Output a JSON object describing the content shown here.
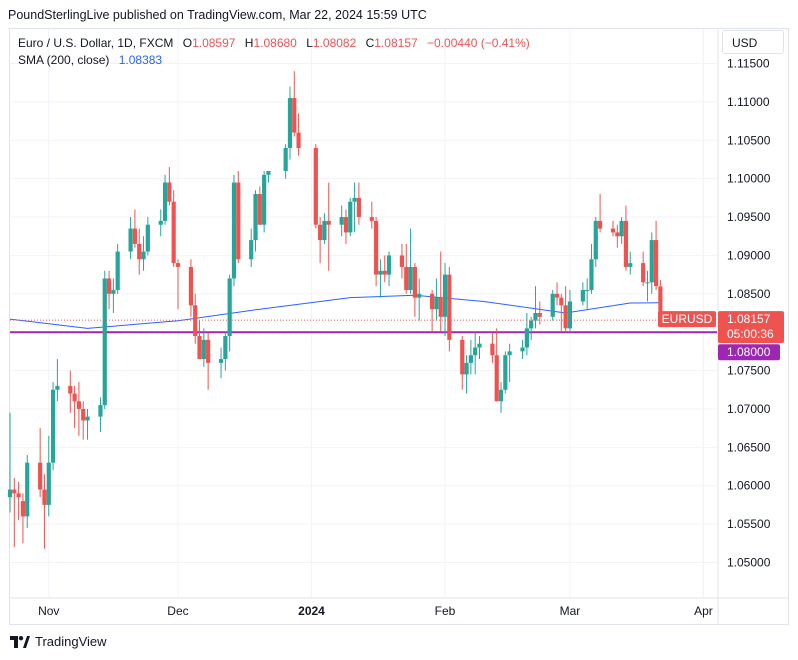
{
  "header": {
    "text": "PoundSterlingLive published on TradingView.com, Mar 22, 2024 15:59 UTC"
  },
  "legend": {
    "symbol": "Euro / U.S. Dollar, 1D, FXCM",
    "open_label": "O",
    "open": "1.08597",
    "high_label": "H",
    "high": "1.08680",
    "low_label": "L",
    "low": "1.08082",
    "close_label": "C",
    "close": "1.08157",
    "change": "−0.00440 (−0.41%)",
    "sma_label": "SMA (200, close)",
    "sma_value": "1.08383"
  },
  "currency_button": "USD",
  "footer": {
    "brand": "TradingView"
  },
  "colors": {
    "up": "#26a69a",
    "down": "#ef5350",
    "sma": "#2962ff",
    "hline": "#9c27b0",
    "grid": "#f0f3fa",
    "axis_text": "#131722"
  },
  "chart_data": {
    "type": "candlestick",
    "symbol": "EURUSD",
    "timeframe": "1D",
    "y_ticks": [
      "1.11500",
      "1.11000",
      "1.10500",
      "1.10000",
      "1.09500",
      "1.09000",
      "1.08500",
      "1.08000",
      "1.07500",
      "1.07000",
      "1.06500",
      "1.06000",
      "1.05500",
      "1.05000"
    ],
    "y_range": [
      1.0455,
      1.1195
    ],
    "x_range": [
      "2023-10-23",
      "2024-04-06"
    ],
    "x_ticks": [
      {
        "date": "2023-11-01",
        "label": "Nov",
        "bold": false
      },
      {
        "date": "2023-12-01",
        "label": "Dec",
        "bold": false
      },
      {
        "date": "2024-01-01",
        "label": "2024",
        "bold": true
      },
      {
        "date": "2024-02-01",
        "label": "Feb",
        "bold": false
      },
      {
        "date": "2024-03-01",
        "label": "Mar",
        "bold": false
      },
      {
        "date": "2024-04-01",
        "label": "Apr",
        "bold": false
      }
    ],
    "price_tag": {
      "symbol": "EURUSD",
      "value": "1.08157",
      "countdown": "05:00:36"
    },
    "horizontal_line": {
      "value": 1.08,
      "label": "1.08000"
    },
    "candles": [
      {
        "date": "2023-10-23",
        "o": 1.0585,
        "h": 1.0695,
        "l": 1.0565,
        "c": 1.0595
      },
      {
        "date": "2023-10-24",
        "o": 1.0595,
        "h": 1.061,
        "l": 1.052,
        "c": 1.059
      },
      {
        "date": "2023-10-25",
        "o": 1.059,
        "h": 1.0605,
        "l": 1.0555,
        "c": 1.0585
      },
      {
        "date": "2023-10-26",
        "o": 1.058,
        "h": 1.059,
        "l": 1.0525,
        "c": 1.056
      },
      {
        "date": "2023-10-27",
        "o": 1.056,
        "h": 1.064,
        "l": 1.0545,
        "c": 1.063
      },
      {
        "date": "2023-10-30",
        "o": 1.063,
        "h": 1.0675,
        "l": 1.0585,
        "c": 1.0595
      },
      {
        "date": "2023-10-31",
        "o": 1.0595,
        "h": 1.0615,
        "l": 1.0518,
        "c": 1.0575
      },
      {
        "date": "2023-11-01",
        "o": 1.0575,
        "h": 1.0665,
        "l": 1.056,
        "c": 1.063
      },
      {
        "date": "2023-11-02",
        "o": 1.063,
        "h": 1.0735,
        "l": 1.062,
        "c": 1.0725
      },
      {
        "date": "2023-11-03",
        "o": 1.0725,
        "h": 1.0765,
        "l": 1.071,
        "c": 1.073
      },
      {
        "date": "2023-11-06",
        "o": 1.073,
        "h": 1.075,
        "l": 1.0695,
        "c": 1.072
      },
      {
        "date": "2023-11-07",
        "o": 1.072,
        "h": 1.073,
        "l": 1.0675,
        "c": 1.071
      },
      {
        "date": "2023-11-08",
        "o": 1.071,
        "h": 1.0735,
        "l": 1.0665,
        "c": 1.07
      },
      {
        "date": "2023-11-09",
        "o": 1.07,
        "h": 1.071,
        "l": 1.066,
        "c": 1.0685
      },
      {
        "date": "2023-11-10",
        "o": 1.0685,
        "h": 1.07,
        "l": 1.066,
        "c": 1.069
      },
      {
        "date": "2023-11-13",
        "o": 1.069,
        "h": 1.0715,
        "l": 1.067,
        "c": 1.0705
      },
      {
        "date": "2023-11-14",
        "o": 1.0705,
        "h": 1.088,
        "l": 1.07,
        "c": 1.087
      },
      {
        "date": "2023-11-15",
        "o": 1.087,
        "h": 1.088,
        "l": 1.083,
        "c": 1.085
      },
      {
        "date": "2023-11-16",
        "o": 1.085,
        "h": 1.087,
        "l": 1.0825,
        "c": 1.0855
      },
      {
        "date": "2023-11-17",
        "o": 1.0855,
        "h": 1.0915,
        "l": 1.085,
        "c": 1.0905
      },
      {
        "date": "2023-11-20",
        "o": 1.0905,
        "h": 1.095,
        "l": 1.0895,
        "c": 1.0935
      },
      {
        "date": "2023-11-21",
        "o": 1.0935,
        "h": 1.096,
        "l": 1.091,
        "c": 1.0915
      },
      {
        "date": "2023-11-22",
        "o": 1.0915,
        "h": 1.0935,
        "l": 1.0875,
        "c": 1.0895
      },
      {
        "date": "2023-11-23",
        "o": 1.0895,
        "h": 1.0925,
        "l": 1.088,
        "c": 1.0905
      },
      {
        "date": "2023-11-24",
        "o": 1.0905,
        "h": 1.095,
        "l": 1.09,
        "c": 1.094
      },
      {
        "date": "2023-11-27",
        "o": 1.094,
        "h": 1.096,
        "l": 1.0925,
        "c": 1.0945
      },
      {
        "date": "2023-11-28",
        "o": 1.0945,
        "h": 1.1005,
        "l": 1.094,
        "c": 1.0995
      },
      {
        "date": "2023-11-29",
        "o": 1.0995,
        "h": 1.1015,
        "l": 1.0965,
        "c": 1.097
      },
      {
        "date": "2023-11-30",
        "o": 1.097,
        "h": 1.0985,
        "l": 1.0885,
        "c": 1.089
      },
      {
        "date": "2023-12-01",
        "o": 1.089,
        "h": 1.0895,
        "l": 1.083,
        "c": 1.0885
      },
      {
        "date": "2023-12-04",
        "o": 1.0885,
        "h": 1.0895,
        "l": 1.082,
        "c": 1.0835
      },
      {
        "date": "2023-12-05",
        "o": 1.0835,
        "h": 1.085,
        "l": 1.0785,
        "c": 1.0795
      },
      {
        "date": "2023-12-06",
        "o": 1.0795,
        "h": 1.0815,
        "l": 1.0765,
        "c": 1.0765
      },
      {
        "date": "2023-12-07",
        "o": 1.0765,
        "h": 1.0805,
        "l": 1.0755,
        "c": 1.079
      },
      {
        "date": "2023-12-08",
        "o": 1.079,
        "h": 1.08,
        "l": 1.0725,
        "c": 1.076
      },
      {
        "date": "2023-12-11",
        "o": 1.076,
        "h": 1.078,
        "l": 1.074,
        "c": 1.0765
      },
      {
        "date": "2023-12-12",
        "o": 1.0765,
        "h": 1.08,
        "l": 1.075,
        "c": 1.0795
      },
      {
        "date": "2023-12-13",
        "o": 1.0795,
        "h": 1.0875,
        "l": 1.0775,
        "c": 1.087
      },
      {
        "date": "2023-12-14",
        "o": 1.087,
        "h": 1.1005,
        "l": 1.086,
        "c": 1.0995
      },
      {
        "date": "2023-12-15",
        "o": 1.0995,
        "h": 1.101,
        "l": 1.089,
        "c": 1.0895
      },
      {
        "date": "2023-12-18",
        "o": 1.0895,
        "h": 1.0935,
        "l": 1.0885,
        "c": 1.092
      },
      {
        "date": "2023-12-19",
        "o": 1.092,
        "h": 1.0985,
        "l": 1.0905,
        "c": 1.098
      },
      {
        "date": "2023-12-20",
        "o": 1.098,
        "h": 1.099,
        "l": 1.094,
        "c": 1.094
      },
      {
        "date": "2023-12-21",
        "o": 1.094,
        "h": 1.101,
        "l": 1.093,
        "c": 1.1005
      },
      {
        "date": "2023-12-22",
        "o": 1.1005,
        "h": 1.101,
        "l": 1.0995,
        "c": 1.101
      },
      {
        "date": "2023-12-26",
        "o": 1.101,
        "h": 1.1045,
        "l": 1.1,
        "c": 1.104
      },
      {
        "date": "2023-12-27",
        "o": 1.104,
        "h": 1.112,
        "l": 1.1025,
        "c": 1.1105
      },
      {
        "date": "2023-12-28",
        "o": 1.1105,
        "h": 1.114,
        "l": 1.1055,
        "c": 1.106
      },
      {
        "date": "2023-12-29",
        "o": 1.106,
        "h": 1.1085,
        "l": 1.103,
        "c": 1.104
      },
      {
        "date": "2024-01-02",
        "o": 1.104,
        "h": 1.1045,
        "l": 1.0935,
        "c": 1.094
      },
      {
        "date": "2024-01-03",
        "o": 1.094,
        "h": 1.095,
        "l": 1.089,
        "c": 1.092
      },
      {
        "date": "2024-01-04",
        "o": 1.092,
        "h": 1.0955,
        "l": 1.0915,
        "c": 1.0945
      },
      {
        "date": "2024-01-05",
        "o": 1.0945,
        "h": 1.0995,
        "l": 1.088,
        "c": 1.094
      },
      {
        "date": "2024-01-08",
        "o": 1.094,
        "h": 1.0965,
        "l": 1.0925,
        "c": 1.095
      },
      {
        "date": "2024-01-09",
        "o": 1.095,
        "h": 1.096,
        "l": 1.0915,
        "c": 1.093
      },
      {
        "date": "2024-01-10",
        "o": 1.093,
        "h": 1.0975,
        "l": 1.0925,
        "c": 1.097
      },
      {
        "date": "2024-01-11",
        "o": 1.097,
        "h": 1.0995,
        "l": 1.093,
        "c": 1.0975
      },
      {
        "date": "2024-01-12",
        "o": 1.0975,
        "h": 1.0995,
        "l": 1.094,
        "c": 1.095
      },
      {
        "date": "2024-01-15",
        "o": 1.095,
        "h": 1.097,
        "l": 1.0935,
        "c": 1.0945
      },
      {
        "date": "2024-01-16",
        "o": 1.0945,
        "h": 1.095,
        "l": 1.086,
        "c": 1.0875
      },
      {
        "date": "2024-01-17",
        "o": 1.0875,
        "h": 1.0895,
        "l": 1.0845,
        "c": 1.088
      },
      {
        "date": "2024-01-18",
        "o": 1.088,
        "h": 1.09,
        "l": 1.0865,
        "c": 1.0875
      },
      {
        "date": "2024-01-19",
        "o": 1.0875,
        "h": 1.0905,
        "l": 1.086,
        "c": 1.09
      },
      {
        "date": "2024-01-22",
        "o": 1.09,
        "h": 1.0915,
        "l": 1.087,
        "c": 1.0885
      },
      {
        "date": "2024-01-23",
        "o": 1.0885,
        "h": 1.0915,
        "l": 1.085,
        "c": 1.0855
      },
      {
        "date": "2024-01-24",
        "o": 1.0855,
        "h": 1.0935,
        "l": 1.085,
        "c": 1.0885
      },
      {
        "date": "2024-01-25",
        "o": 1.0885,
        "h": 1.089,
        "l": 1.082,
        "c": 1.0845
      },
      {
        "date": "2024-01-26",
        "o": 1.0845,
        "h": 1.087,
        "l": 1.0815,
        "c": 1.085
      },
      {
        "date": "2024-01-29",
        "o": 1.085,
        "h": 1.0855,
        "l": 1.08,
        "c": 1.083
      },
      {
        "date": "2024-01-30",
        "o": 1.083,
        "h": 1.087,
        "l": 1.0815,
        "c": 1.0845
      },
      {
        "date": "2024-01-31",
        "o": 1.0845,
        "h": 1.0905,
        "l": 1.08,
        "c": 1.082
      },
      {
        "date": "2024-02-01",
        "o": 1.082,
        "h": 1.089,
        "l": 1.0795,
        "c": 1.0875
      },
      {
        "date": "2024-02-02",
        "o": 1.0875,
        "h": 1.0885,
        "l": 1.0775,
        "c": 1.079
      },
      {
        "date": "2024-02-05",
        "o": 1.079,
        "h": 1.0795,
        "l": 1.0725,
        "c": 1.0745
      },
      {
        "date": "2024-02-06",
        "o": 1.0745,
        "h": 1.077,
        "l": 1.072,
        "c": 1.076
      },
      {
        "date": "2024-02-07",
        "o": 1.076,
        "h": 1.079,
        "l": 1.0745,
        "c": 1.077
      },
      {
        "date": "2024-02-08",
        "o": 1.077,
        "h": 1.08,
        "l": 1.0745,
        "c": 1.078
      },
      {
        "date": "2024-02-09",
        "o": 1.078,
        "h": 1.0795,
        "l": 1.0765,
        "c": 1.0785
      },
      {
        "date": "2024-02-12",
        "o": 1.0785,
        "h": 1.08,
        "l": 1.076,
        "c": 1.077
      },
      {
        "date": "2024-02-13",
        "o": 1.077,
        "h": 1.0805,
        "l": 1.071,
        "c": 1.071
      },
      {
        "date": "2024-02-14",
        "o": 1.071,
        "h": 1.0735,
        "l": 1.0695,
        "c": 1.0725
      },
      {
        "date": "2024-02-15",
        "o": 1.0725,
        "h": 1.0775,
        "l": 1.072,
        "c": 1.077
      },
      {
        "date": "2024-02-16",
        "o": 1.077,
        "h": 1.0785,
        "l": 1.0735,
        "c": 1.0775
      },
      {
        "date": "2024-02-19",
        "o": 1.0775,
        "h": 1.079,
        "l": 1.0765,
        "c": 1.078
      },
      {
        "date": "2024-02-20",
        "o": 1.078,
        "h": 1.0825,
        "l": 1.077,
        "c": 1.0805
      },
      {
        "date": "2024-02-21",
        "o": 1.0805,
        "h": 1.082,
        "l": 1.079,
        "c": 1.0815
      },
      {
        "date": "2024-02-22",
        "o": 1.0815,
        "h": 1.086,
        "l": 1.0805,
        "c": 1.0825
      },
      {
        "date": "2024-02-23",
        "o": 1.0825,
        "h": 1.084,
        "l": 1.081,
        "c": 1.082
      },
      {
        "date": "2024-02-26",
        "o": 1.082,
        "h": 1.0855,
        "l": 1.0815,
        "c": 1.085
      },
      {
        "date": "2024-02-27",
        "o": 1.085,
        "h": 1.0865,
        "l": 1.0835,
        "c": 1.0845
      },
      {
        "date": "2024-02-28",
        "o": 1.0845,
        "h": 1.085,
        "l": 1.08,
        "c": 1.0835
      },
      {
        "date": "2024-02-29",
        "o": 1.0835,
        "h": 1.086,
        "l": 1.08,
        "c": 1.0805
      },
      {
        "date": "2024-03-01",
        "o": 1.0805,
        "h": 1.0855,
        "l": 1.08,
        "c": 1.084
      },
      {
        "date": "2024-03-04",
        "o": 1.084,
        "h": 1.0865,
        "l": 1.0835,
        "c": 1.0855
      },
      {
        "date": "2024-03-05",
        "o": 1.0855,
        "h": 1.087,
        "l": 1.083,
        "c": 1.0855
      },
      {
        "date": "2024-03-06",
        "o": 1.0855,
        "h": 1.0915,
        "l": 1.085,
        "c": 1.0895
      },
      {
        "date": "2024-03-07",
        "o": 1.0895,
        "h": 1.095,
        "l": 1.0885,
        "c": 1.0945
      },
      {
        "date": "2024-03-08",
        "o": 1.0945,
        "h": 1.098,
        "l": 1.093,
        "c": 1.0935
      },
      {
        "date": "2024-03-11",
        "o": 1.0935,
        "h": 1.0945,
        "l": 1.0925,
        "c": 1.093
      },
      {
        "date": "2024-03-12",
        "o": 1.093,
        "h": 1.094,
        "l": 1.091,
        "c": 1.0925
      },
      {
        "date": "2024-03-13",
        "o": 1.0925,
        "h": 1.095,
        "l": 1.0915,
        "c": 1.0945
      },
      {
        "date": "2024-03-14",
        "o": 1.0945,
        "h": 1.0965,
        "l": 1.088,
        "c": 1.0885
      },
      {
        "date": "2024-03-15",
        "o": 1.0885,
        "h": 1.0905,
        "l": 1.0875,
        "c": 1.089
      },
      {
        "date": "2024-03-18",
        "o": 1.089,
        "h": 1.0905,
        "l": 1.086,
        "c": 1.0865
      },
      {
        "date": "2024-03-19",
        "o": 1.0865,
        "h": 1.088,
        "l": 1.084,
        "c": 1.0865
      },
      {
        "date": "2024-03-20",
        "o": 1.0865,
        "h": 1.093,
        "l": 1.085,
        "c": 1.092
      },
      {
        "date": "2024-03-21",
        "o": 1.092,
        "h": 1.0945,
        "l": 1.0855,
        "c": 1.086
      },
      {
        "date": "2024-03-22",
        "o": 1.08597,
        "h": 1.0868,
        "l": 1.08082,
        "c": 1.08157
      }
    ],
    "sma": [
      {
        "date": "2023-10-23",
        "v": 1.0817
      },
      {
        "date": "2023-11-10",
        "v": 1.0805
      },
      {
        "date": "2023-12-01",
        "v": 1.0815
      },
      {
        "date": "2023-12-20",
        "v": 1.083
      },
      {
        "date": "2024-01-10",
        "v": 1.0845
      },
      {
        "date": "2024-01-25",
        "v": 1.0848
      },
      {
        "date": "2024-02-10",
        "v": 1.084
      },
      {
        "date": "2024-02-29",
        "v": 1.0825
      },
      {
        "date": "2024-03-15",
        "v": 1.0838
      },
      {
        "date": "2024-03-22",
        "v": 1.08383
      }
    ]
  }
}
